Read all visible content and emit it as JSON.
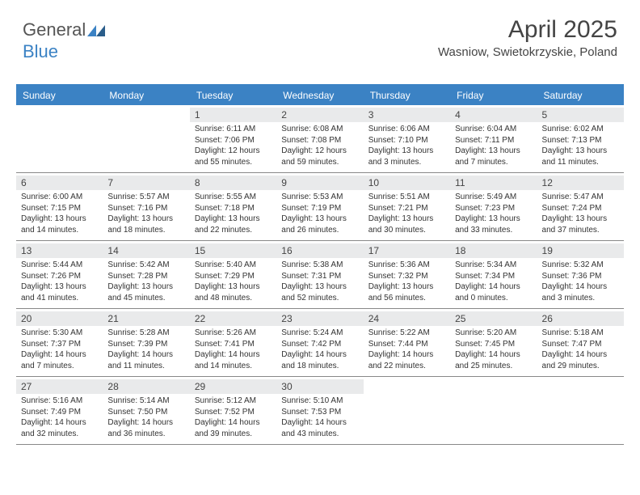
{
  "logo": {
    "text1": "General",
    "text2": "Blue"
  },
  "header": {
    "title": "April 2025",
    "subtitle": "Wasniow, Swietokrzyskie, Poland"
  },
  "colors": {
    "accent": "#3b82c4",
    "header_bg": "#3b82c4",
    "daynum_bg": "#e9eaeb"
  },
  "dayNames": [
    "Sunday",
    "Monday",
    "Tuesday",
    "Wednesday",
    "Thursday",
    "Friday",
    "Saturday"
  ],
  "weeks": [
    [
      null,
      null,
      {
        "n": "1",
        "sr": "6:11 AM",
        "ss": "7:06 PM",
        "dl": "12 hours and 55 minutes."
      },
      {
        "n": "2",
        "sr": "6:08 AM",
        "ss": "7:08 PM",
        "dl": "12 hours and 59 minutes."
      },
      {
        "n": "3",
        "sr": "6:06 AM",
        "ss": "7:10 PM",
        "dl": "13 hours and 3 minutes."
      },
      {
        "n": "4",
        "sr": "6:04 AM",
        "ss": "7:11 PM",
        "dl": "13 hours and 7 minutes."
      },
      {
        "n": "5",
        "sr": "6:02 AM",
        "ss": "7:13 PM",
        "dl": "13 hours and 11 minutes."
      }
    ],
    [
      {
        "n": "6",
        "sr": "6:00 AM",
        "ss": "7:15 PM",
        "dl": "13 hours and 14 minutes."
      },
      {
        "n": "7",
        "sr": "5:57 AM",
        "ss": "7:16 PM",
        "dl": "13 hours and 18 minutes."
      },
      {
        "n": "8",
        "sr": "5:55 AM",
        "ss": "7:18 PM",
        "dl": "13 hours and 22 minutes."
      },
      {
        "n": "9",
        "sr": "5:53 AM",
        "ss": "7:19 PM",
        "dl": "13 hours and 26 minutes."
      },
      {
        "n": "10",
        "sr": "5:51 AM",
        "ss": "7:21 PM",
        "dl": "13 hours and 30 minutes."
      },
      {
        "n": "11",
        "sr": "5:49 AM",
        "ss": "7:23 PM",
        "dl": "13 hours and 33 minutes."
      },
      {
        "n": "12",
        "sr": "5:47 AM",
        "ss": "7:24 PM",
        "dl": "13 hours and 37 minutes."
      }
    ],
    [
      {
        "n": "13",
        "sr": "5:44 AM",
        "ss": "7:26 PM",
        "dl": "13 hours and 41 minutes."
      },
      {
        "n": "14",
        "sr": "5:42 AM",
        "ss": "7:28 PM",
        "dl": "13 hours and 45 minutes."
      },
      {
        "n": "15",
        "sr": "5:40 AM",
        "ss": "7:29 PM",
        "dl": "13 hours and 48 minutes."
      },
      {
        "n": "16",
        "sr": "5:38 AM",
        "ss": "7:31 PM",
        "dl": "13 hours and 52 minutes."
      },
      {
        "n": "17",
        "sr": "5:36 AM",
        "ss": "7:32 PM",
        "dl": "13 hours and 56 minutes."
      },
      {
        "n": "18",
        "sr": "5:34 AM",
        "ss": "7:34 PM",
        "dl": "14 hours and 0 minutes."
      },
      {
        "n": "19",
        "sr": "5:32 AM",
        "ss": "7:36 PM",
        "dl": "14 hours and 3 minutes."
      }
    ],
    [
      {
        "n": "20",
        "sr": "5:30 AM",
        "ss": "7:37 PM",
        "dl": "14 hours and 7 minutes."
      },
      {
        "n": "21",
        "sr": "5:28 AM",
        "ss": "7:39 PM",
        "dl": "14 hours and 11 minutes."
      },
      {
        "n": "22",
        "sr": "5:26 AM",
        "ss": "7:41 PM",
        "dl": "14 hours and 14 minutes."
      },
      {
        "n": "23",
        "sr": "5:24 AM",
        "ss": "7:42 PM",
        "dl": "14 hours and 18 minutes."
      },
      {
        "n": "24",
        "sr": "5:22 AM",
        "ss": "7:44 PM",
        "dl": "14 hours and 22 minutes."
      },
      {
        "n": "25",
        "sr": "5:20 AM",
        "ss": "7:45 PM",
        "dl": "14 hours and 25 minutes."
      },
      {
        "n": "26",
        "sr": "5:18 AM",
        "ss": "7:47 PM",
        "dl": "14 hours and 29 minutes."
      }
    ],
    [
      {
        "n": "27",
        "sr": "5:16 AM",
        "ss": "7:49 PM",
        "dl": "14 hours and 32 minutes."
      },
      {
        "n": "28",
        "sr": "5:14 AM",
        "ss": "7:50 PM",
        "dl": "14 hours and 36 minutes."
      },
      {
        "n": "29",
        "sr": "5:12 AM",
        "ss": "7:52 PM",
        "dl": "14 hours and 39 minutes."
      },
      {
        "n": "30",
        "sr": "5:10 AM",
        "ss": "7:53 PM",
        "dl": "14 hours and 43 minutes."
      },
      null,
      null,
      null
    ]
  ],
  "labels": {
    "sunrise": "Sunrise: ",
    "sunset": "Sunset: ",
    "daylight": "Daylight: "
  }
}
